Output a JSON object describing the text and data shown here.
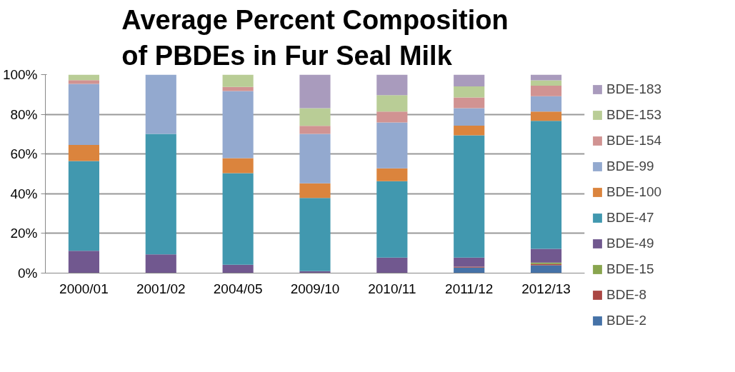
{
  "chart_data": {
    "type": "bar",
    "stacked": true,
    "title": "Average Percent Composition of PBDEs in Fur Seal Milk",
    "categories": [
      "2000/01",
      "2001/02",
      "2004/05",
      "2009/10",
      "2010/11",
      "2011/12",
      "2012/13"
    ],
    "ylim": [
      0,
      100
    ],
    "yticks": [
      {
        "value": 0,
        "label": "0%"
      },
      {
        "value": 20,
        "label": "20%"
      },
      {
        "value": 40,
        "label": "40%"
      },
      {
        "value": 60,
        "label": "60%"
      },
      {
        "value": 80,
        "label": "80%"
      },
      {
        "value": 100,
        "label": "100%"
      }
    ],
    "grid": "y",
    "legend": "right",
    "series": [
      {
        "name": "BDE-2",
        "color": "#4572a7",
        "values": [
          0,
          0,
          0,
          0,
          0,
          2.8,
          4.0
        ]
      },
      {
        "name": "BDE-8",
        "color": "#aa4643",
        "values": [
          0,
          0,
          0,
          0,
          0,
          0.4,
          0.6
        ]
      },
      {
        "name": "BDE-15",
        "color": "#89a54e",
        "values": [
          0,
          0,
          0,
          0,
          0,
          0,
          0.7
        ]
      },
      {
        "name": "BDE-49",
        "color": "#71588f",
        "values": [
          11.2,
          9.4,
          4.2,
          1.0,
          7.8,
          4.6,
          6.9
        ]
      },
      {
        "name": "BDE-47",
        "color": "#4198af",
        "values": [
          45.3,
          60.7,
          46.2,
          36.9,
          38.5,
          61.6,
          64.5
        ]
      },
      {
        "name": "BDE-100",
        "color": "#db843d",
        "values": [
          8.1,
          0,
          7.5,
          7.3,
          6.5,
          4.9,
          4.7
        ]
      },
      {
        "name": "BDE-99",
        "color": "#93a9cf",
        "values": [
          30.7,
          29.9,
          33.8,
          24.9,
          23.1,
          8.8,
          7.7
        ]
      },
      {
        "name": "BDE-154",
        "color": "#d19392",
        "values": [
          1.9,
          0,
          2.1,
          4.1,
          5.5,
          5.4,
          5.3
        ]
      },
      {
        "name": "BDE-153",
        "color": "#b9cd96",
        "values": [
          2.8,
          0,
          6.2,
          8.9,
          8.3,
          5.6,
          2.7
        ]
      },
      {
        "name": "BDE-183",
        "color": "#a99bbd",
        "values": [
          0,
          0,
          0,
          16.9,
          10.3,
          5.9,
          2.9
        ]
      }
    ]
  }
}
